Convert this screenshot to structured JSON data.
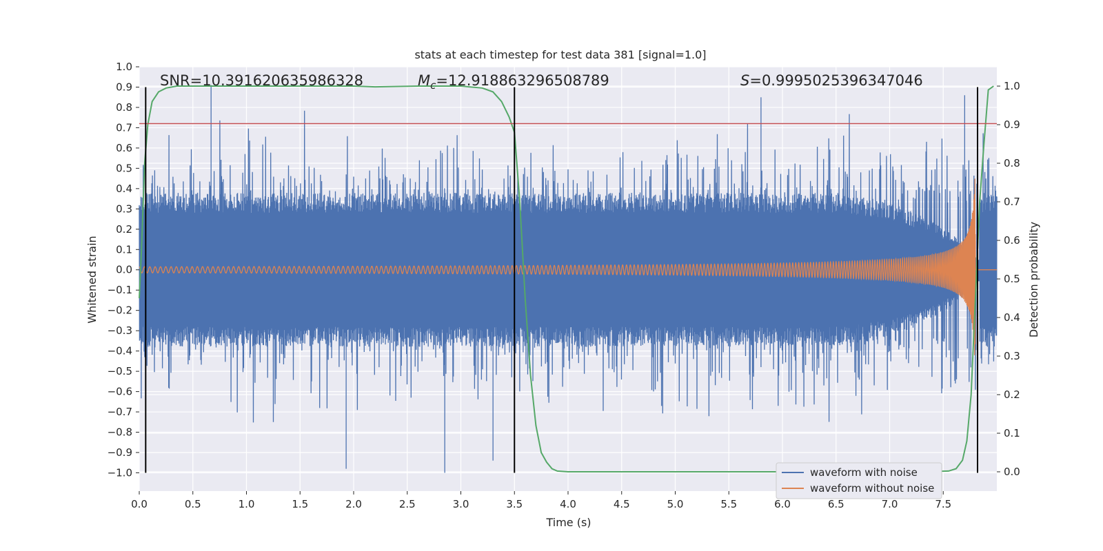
{
  "chart_data": {
    "type": "line",
    "title": "stats at each timestep for test data 381 [signal=1.0]",
    "xlabel": "Time (s)",
    "ylabel": "Whitened strain",
    "y2label": "Detection probability",
    "xlim": [
      0.0,
      8.0
    ],
    "ylim": [
      -1.09,
      1.0
    ],
    "y2lim": [
      -0.05,
      1.05
    ],
    "xticks": [
      "0.0",
      "0.5",
      "1.0",
      "1.5",
      "2.0",
      "2.5",
      "3.0",
      "3.5",
      "4.0",
      "4.5",
      "5.0",
      "5.5",
      "6.0",
      "6.5",
      "7.0",
      "7.5"
    ],
    "yticks": [
      "1.0",
      "0.9",
      "0.8",
      "0.7",
      "0.6",
      "0.5",
      "0.4",
      "0.3",
      "0.2",
      "0.1",
      "0.0",
      "−0.1",
      "−0.2",
      "−0.3",
      "−0.4",
      "−0.5",
      "−0.6",
      "−0.7",
      "−0.8",
      "−0.9",
      "−1.0"
    ],
    "y2ticks": [
      "0.0",
      "0.1",
      "0.2",
      "0.3",
      "0.4",
      "0.5",
      "0.6",
      "0.7",
      "0.8",
      "0.9",
      "1.0"
    ],
    "annotations": {
      "snr": "SNR=10.391620635986328",
      "mc_sym": "M",
      "mc_sub": "c",
      "mc_val": "=12.918863296508789",
      "s_sym": "S",
      "s_val": "=0.9995025396347046"
    },
    "vlines_x": [
      0.06,
      3.5,
      7.82
    ],
    "vline_range": [
      -1.0,
      0.9
    ],
    "hline_y": 0.72,
    "series": [
      {
        "name": "waveform with noise",
        "color": "#4c72b0",
        "noise_core": 0.33,
        "noise_env_end": 0.05,
        "peak_pos": 0.91,
        "peak_neg": -1.0
      },
      {
        "name": "waveform without noise",
        "color": "#dd8452",
        "amp_start": 0.015,
        "amp_peak": 0.45,
        "merger_t": 7.8,
        "freq_start": 20
      },
      {
        "name": "detection probability",
        "color": "#55a868",
        "t": [
          0.0,
          0.02,
          0.05,
          0.08,
          0.12,
          0.18,
          0.25,
          0.35,
          0.5,
          0.8,
          1.2,
          1.6,
          2.0,
          2.2,
          2.6,
          3.0,
          3.2,
          3.3,
          3.38,
          3.45,
          3.5,
          3.55,
          3.6,
          3.65,
          3.7,
          3.75,
          3.8,
          3.85,
          3.9,
          4.0,
          4.5,
          5.5,
          6.5,
          7.3,
          7.55,
          7.62,
          7.68,
          7.72,
          7.76,
          7.8,
          7.84,
          7.88,
          7.92,
          7.97
        ],
        "p": [
          0.45,
          0.57,
          0.8,
          0.9,
          0.96,
          0.985,
          0.995,
          1.0,
          1.0,
          1.0,
          1.0,
          1.0,
          1.0,
          0.998,
          1.0,
          1.0,
          0.995,
          0.985,
          0.96,
          0.92,
          0.88,
          0.7,
          0.45,
          0.25,
          0.12,
          0.05,
          0.025,
          0.008,
          0.002,
          0.0,
          0.0,
          0.0,
          0.0,
          0.0,
          0.002,
          0.008,
          0.03,
          0.08,
          0.2,
          0.45,
          0.7,
          0.85,
          0.99,
          1.0
        ]
      }
    ],
    "legend": [
      "waveform with noise",
      "waveform without noise"
    ],
    "legend_position": "lower-right",
    "grid": true
  }
}
